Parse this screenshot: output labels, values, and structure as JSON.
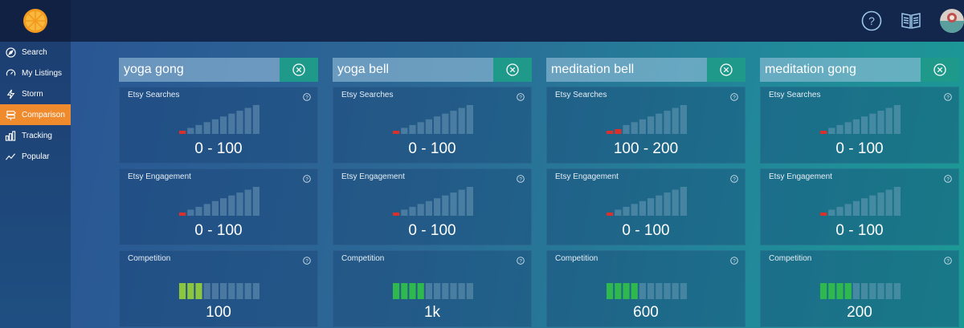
{
  "header": {
    "logo": "orange-slice-logo",
    "icons": [
      "help-circle-icon",
      "book-icon",
      "avatar"
    ]
  },
  "sidebar": {
    "items": [
      {
        "label": "Search",
        "icon": "compass-icon",
        "active": false
      },
      {
        "label": "My Listings",
        "icon": "gauge-icon",
        "active": false
      },
      {
        "label": "Storm",
        "icon": "lightning-icon",
        "active": false
      },
      {
        "label": "Comparison",
        "icon": "signpost-icon",
        "active": true
      },
      {
        "label": "Tracking",
        "icon": "bar-chart-icon",
        "active": false
      },
      {
        "label": "Popular",
        "icon": "trend-line-icon",
        "active": false
      }
    ]
  },
  "comparison": {
    "columns": [
      {
        "keyword": "yoga gong",
        "searches": {
          "label": "Etsy Searches",
          "value": "0 - 100",
          "level": 1
        },
        "engagement": {
          "label": "Etsy Engagement",
          "value": "0 - 100",
          "level": 1
        },
        "competition": {
          "label": "Competition",
          "value": "100",
          "level": 3
        }
      },
      {
        "keyword": "yoga bell",
        "searches": {
          "label": "Etsy Searches",
          "value": "0 - 100",
          "level": 1
        },
        "engagement": {
          "label": "Etsy Engagement",
          "value": "0 - 100",
          "level": 1
        },
        "competition": {
          "label": "Competition",
          "value": "1k",
          "level": 4
        }
      },
      {
        "keyword": "meditation bell",
        "searches": {
          "label": "Etsy Searches",
          "value": "100 - 200",
          "level": 2
        },
        "engagement": {
          "label": "Etsy Engagement",
          "value": "0 - 100",
          "level": 1
        },
        "competition": {
          "label": "Competition",
          "value": "600",
          "level": 4
        }
      },
      {
        "keyword": "meditation gong",
        "searches": {
          "label": "Etsy Searches",
          "value": "0 - 100",
          "level": 1
        },
        "engagement": {
          "label": "Etsy Engagement",
          "value": "0 - 100",
          "level": 1
        },
        "competition": {
          "label": "Competition",
          "value": "200",
          "level": 4
        }
      }
    ]
  },
  "colors": {
    "accent": "#ef8a2d",
    "low": "#d9302c",
    "competition_light": "#8cc63f",
    "competition_green": "#2eb84e",
    "bar_inactive": "#7aa6c2"
  }
}
